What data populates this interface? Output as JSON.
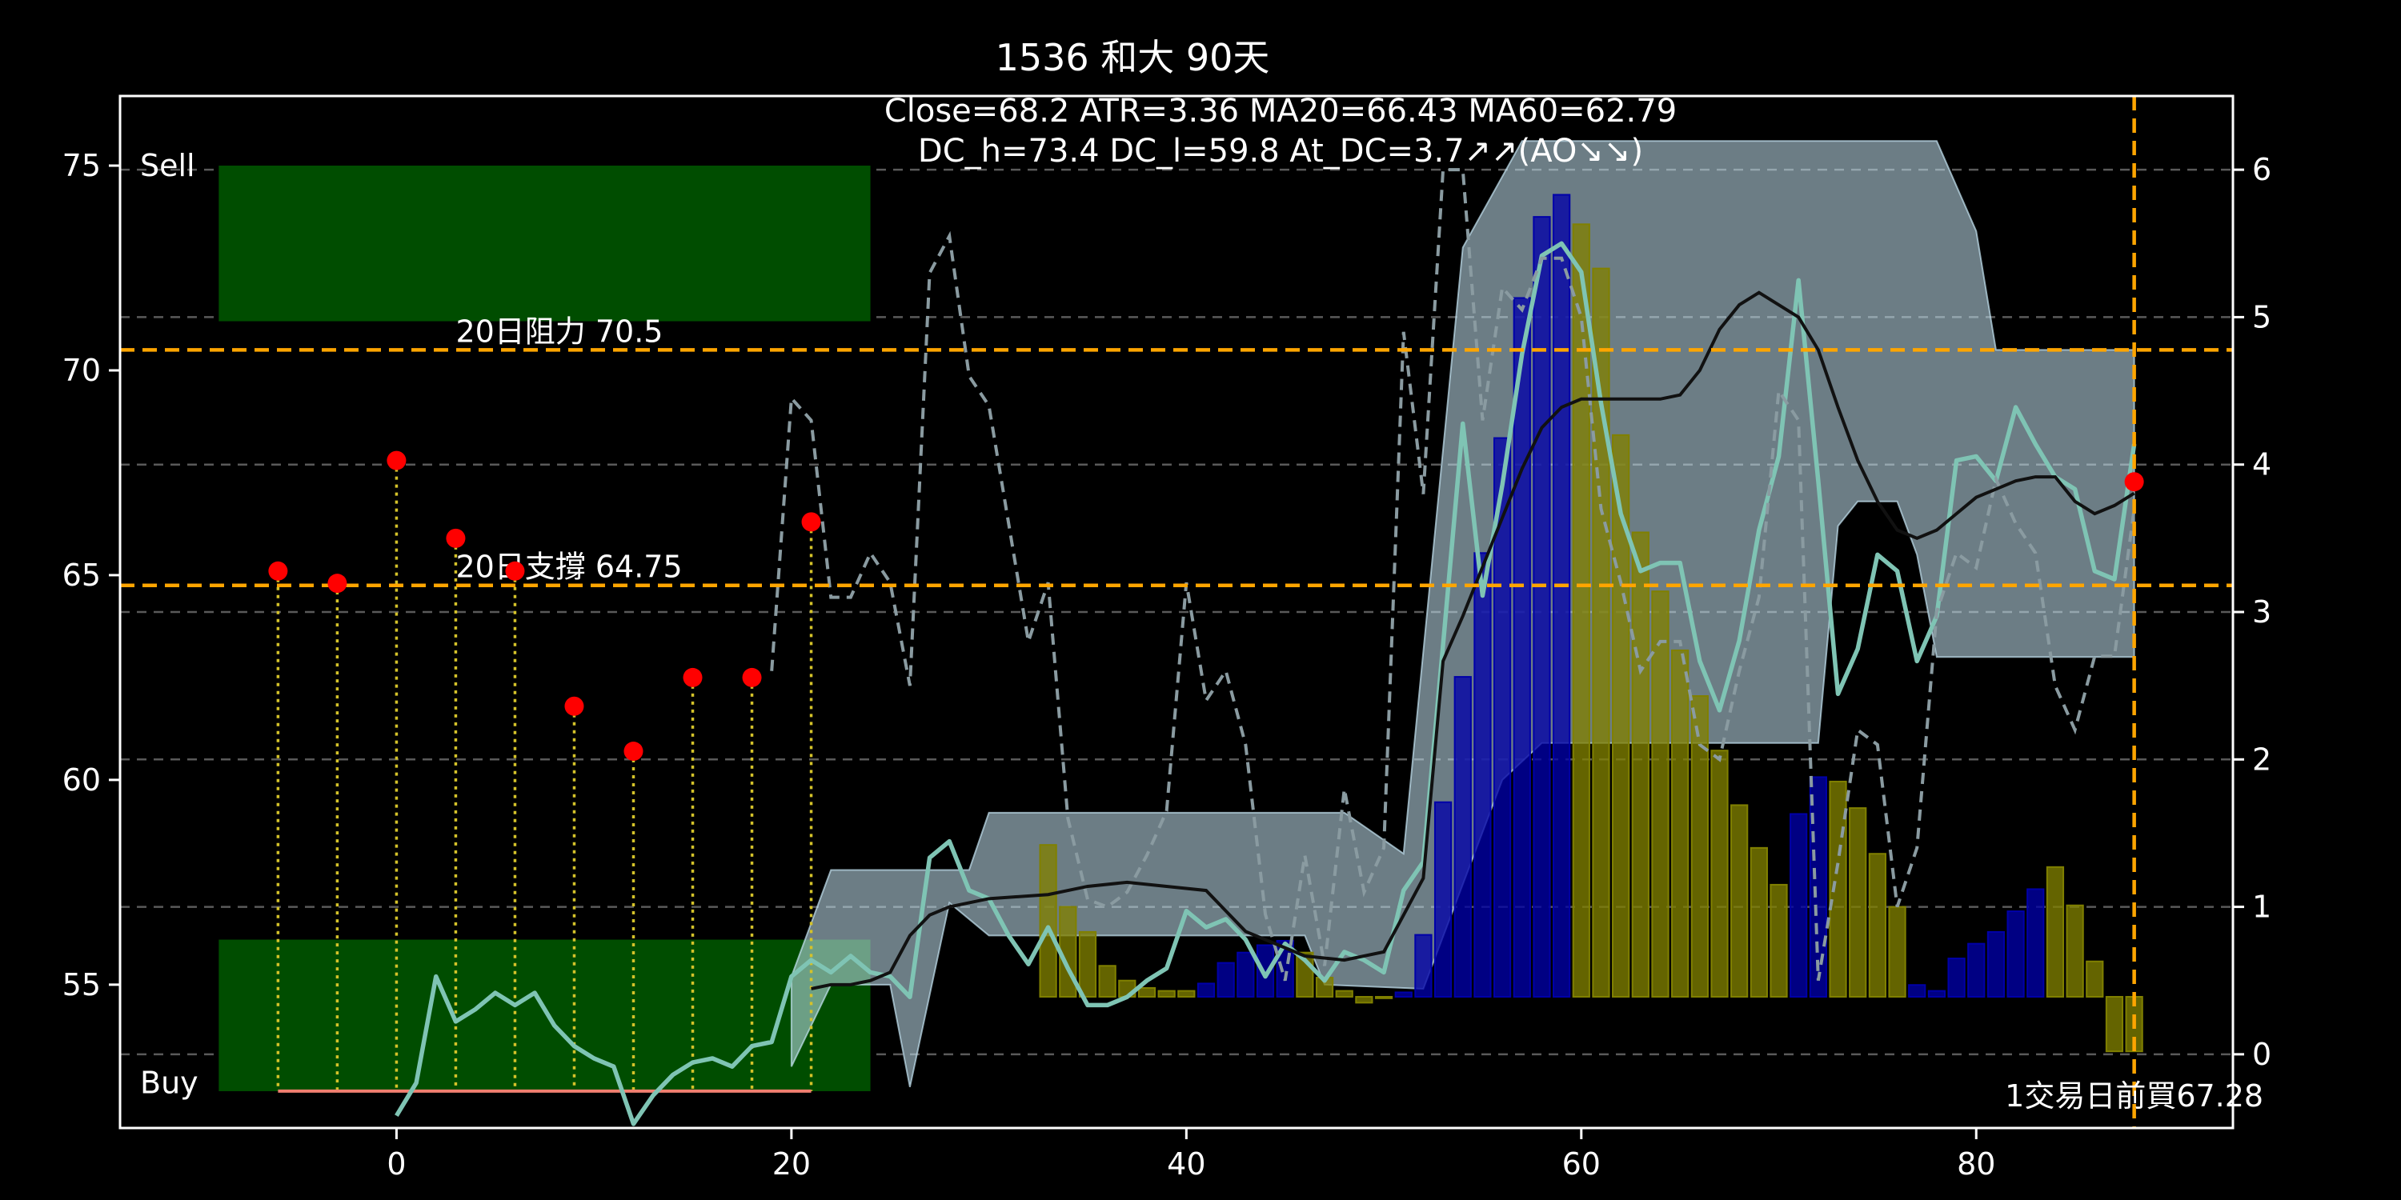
{
  "chart_data": {
    "type": "line",
    "title": "1536 和大 90天",
    "subtitle_line1": "Close=68.2 ATR=3.36 MA20=66.43 MA60=62.79",
    "subtitle_line2": "DC_h=73.4 DC_l=59.8 At_DC=3.7↗↗(AO↘↘)",
    "xlim": [
      -14,
      93
    ],
    "ylim_left": [
      51.5,
      76.7
    ],
    "ylim_right": [
      -0.5,
      6.5
    ],
    "x_ticks": [
      0,
      20,
      40,
      60,
      80
    ],
    "y_left_ticks": [
      55,
      60,
      65,
      70,
      75
    ],
    "y_right_ticks": [
      0,
      1,
      2,
      3,
      4,
      5,
      6
    ],
    "grid": "horizontal dashed",
    "colors": {
      "background": "#000000",
      "frame": "#ffffff",
      "orange": "#ffa500",
      "zone_green": "#004d00",
      "teal": "#7fc4b4",
      "band": "#c4e4f2",
      "dashed_line": "#8a9ba1",
      "ma_line": "#111111",
      "hist_blue": "#0000a8",
      "hist_yellow": "#808000",
      "dots": "#ff0000",
      "stems": "#d4c22a",
      "baseline": "#f07f6f"
    },
    "zones": {
      "sell": {
        "label": "Sell",
        "x": [
          -9,
          24
        ],
        "y": [
          71.2,
          75
        ]
      },
      "buy": {
        "label": "Buy",
        "x": [
          -9,
          24
        ],
        "y": [
          52.4,
          56.1
        ]
      }
    },
    "hlines": [
      {
        "y": 70.5,
        "label": "20日阻力 70.5",
        "label_x": 3
      },
      {
        "y": 64.75,
        "label": "20日支撐 64.75",
        "label_x": 3
      }
    ],
    "vline_x": 88,
    "buy_note": "1交易日前買67.28",
    "buy_note_pos": [
      88,
      52.3
    ],
    "right_point": {
      "x": 88,
      "y": 67.28
    },
    "signal_points": [
      {
        "x": -6,
        "y": 65.1
      },
      {
        "x": -3,
        "y": 64.8
      },
      {
        "x": 0,
        "y": 67.8
      },
      {
        "x": 3,
        "y": 65.9
      },
      {
        "x": 6,
        "y": 65.1
      },
      {
        "x": 9,
        "y": 61.8
      },
      {
        "x": 12,
        "y": 60.7
      },
      {
        "x": 15,
        "y": 62.5
      },
      {
        "x": 18,
        "y": 62.5
      },
      {
        "x": 21,
        "y": 66.3
      }
    ],
    "signal_baseline_y": 52.4,
    "histogram": {
      "base": 0.39,
      "bars": [
        [
          33,
          1.42
        ],
        [
          34,
          1.0
        ],
        [
          35,
          0.83
        ],
        [
          36,
          0.6
        ],
        [
          37,
          0.5
        ],
        [
          38,
          0.45
        ],
        [
          39,
          0.43
        ],
        [
          40,
          0.43
        ],
        [
          41,
          0.48
        ],
        [
          42,
          0.62
        ],
        [
          43,
          0.69
        ],
        [
          44,
          0.74
        ],
        [
          45,
          0.77
        ],
        [
          46,
          0.69
        ],
        [
          47,
          0.52
        ],
        [
          48,
          0.43
        ],
        [
          49,
          0.35
        ],
        [
          50,
          0.38
        ],
        [
          51,
          0.42
        ],
        [
          52,
          0.81
        ],
        [
          53,
          1.71
        ],
        [
          54,
          2.56
        ],
        [
          55,
          3.4
        ],
        [
          56,
          4.18
        ],
        [
          57,
          5.13
        ],
        [
          58,
          5.68
        ],
        [
          59,
          5.83
        ],
        [
          60,
          5.63
        ],
        [
          61,
          5.33
        ],
        [
          62,
          4.2
        ],
        [
          63,
          3.54
        ],
        [
          64,
          3.14
        ],
        [
          65,
          2.74
        ],
        [
          66,
          2.43
        ],
        [
          67,
          2.06
        ],
        [
          68,
          1.69
        ],
        [
          69,
          1.4
        ],
        [
          70,
          1.15
        ],
        [
          71,
          1.63
        ],
        [
          72,
          1.88
        ],
        [
          73,
          1.85
        ],
        [
          74,
          1.67
        ],
        [
          75,
          1.36
        ],
        [
          76,
          1.0
        ],
        [
          77,
          0.47
        ],
        [
          78,
          0.43
        ],
        [
          79,
          0.65
        ],
        [
          80,
          0.75
        ],
        [
          81,
          0.83
        ],
        [
          82,
          0.97
        ],
        [
          83,
          1.12
        ],
        [
          84,
          1.27
        ],
        [
          85,
          1.01
        ],
        [
          86,
          0.63
        ],
        [
          87,
          0.02
        ],
        [
          88,
          0.02
        ]
      ]
    },
    "band_upper": [
      [
        20,
        55.2
      ],
      [
        22,
        57.8
      ],
      [
        29,
        57.8
      ],
      [
        30,
        59.2
      ],
      [
        48,
        59.2
      ],
      [
        51,
        58.2
      ],
      [
        54,
        73
      ],
      [
        57,
        75.6
      ],
      [
        78,
        75.6
      ],
      [
        80,
        73.4
      ],
      [
        81,
        70.5
      ],
      [
        88,
        70.5
      ]
    ],
    "band_lower": [
      [
        20,
        53
      ],
      [
        22,
        55
      ],
      [
        25,
        55
      ],
      [
        26,
        52.5
      ],
      [
        28,
        57
      ],
      [
        30,
        56.2
      ],
      [
        46,
        56.2
      ],
      [
        47,
        55
      ],
      [
        52,
        54.9
      ],
      [
        56,
        60
      ],
      [
        58,
        60.9
      ],
      [
        72,
        60.9
      ],
      [
        73,
        66.2
      ],
      [
        74,
        66.8
      ],
      [
        76,
        66.8
      ],
      [
        77,
        65.5
      ],
      [
        78,
        63
      ],
      [
        88,
        63
      ]
    ],
    "series": [
      {
        "role": "teal_line",
        "axis": "left",
        "points": [
          [
            0,
            51.8
          ],
          [
            1,
            52.6
          ],
          [
            2,
            55.2
          ],
          [
            3,
            54.1
          ],
          [
            4,
            54.4
          ],
          [
            5,
            54.8
          ],
          [
            6,
            54.5
          ],
          [
            7,
            54.8
          ],
          [
            8,
            54
          ],
          [
            9,
            53.5
          ],
          [
            10,
            53.2
          ],
          [
            11,
            53
          ],
          [
            12,
            51.6
          ],
          [
            13,
            52.3
          ],
          [
            14,
            52.8
          ],
          [
            15,
            53.1
          ],
          [
            16,
            53.2
          ],
          [
            17,
            53
          ],
          [
            18,
            53.5
          ],
          [
            19,
            53.6
          ],
          [
            20,
            55.2
          ],
          [
            21,
            55.6
          ],
          [
            22,
            55.3
          ],
          [
            23,
            55.7
          ],
          [
            24,
            55.3
          ],
          [
            25,
            55.2
          ],
          [
            26,
            54.7
          ],
          [
            27,
            58.1
          ],
          [
            28,
            58.5
          ],
          [
            29,
            57.3
          ],
          [
            30,
            57.1
          ],
          [
            31,
            56.2
          ],
          [
            32,
            55.5
          ],
          [
            33,
            56.4
          ],
          [
            34,
            55.4
          ],
          [
            35,
            54.5
          ],
          [
            36,
            54.5
          ],
          [
            37,
            54.7
          ],
          [
            38,
            55.1
          ],
          [
            39,
            55.4
          ],
          [
            40,
            56.8
          ],
          [
            41,
            56.4
          ],
          [
            42,
            56.6
          ],
          [
            43,
            56.1
          ],
          [
            44,
            55.2
          ],
          [
            45,
            56
          ],
          [
            46,
            55.6
          ],
          [
            47,
            55.1
          ],
          [
            48,
            55.8
          ],
          [
            49,
            55.6
          ],
          [
            50,
            55.3
          ],
          [
            51,
            57.3
          ],
          [
            52,
            58
          ],
          [
            53,
            63.3
          ],
          [
            54,
            68.7
          ],
          [
            55,
            64.5
          ],
          [
            56,
            67.2
          ],
          [
            57,
            70.4
          ],
          [
            58,
            72.8
          ],
          [
            59,
            73.1
          ],
          [
            60,
            72.4
          ],
          [
            61,
            69.2
          ],
          [
            62,
            66.5
          ],
          [
            63,
            65.1
          ],
          [
            64,
            65.3
          ],
          [
            65,
            65.3
          ],
          [
            66,
            62.9
          ],
          [
            67,
            61.7
          ],
          [
            68,
            63.4
          ],
          [
            69,
            66.1
          ],
          [
            70,
            67.9
          ],
          [
            71,
            72.2
          ],
          [
            72,
            67.3
          ],
          [
            73,
            62.1
          ],
          [
            74,
            63.2
          ],
          [
            75,
            65.5
          ],
          [
            76,
            65.1
          ],
          [
            77,
            62.9
          ],
          [
            78,
            64
          ],
          [
            79,
            67.8
          ],
          [
            80,
            67.9
          ],
          [
            81,
            67.3
          ],
          [
            82,
            69.1
          ],
          [
            83,
            68.2
          ],
          [
            84,
            67.4
          ],
          [
            85,
            67.1
          ],
          [
            86,
            65.1
          ],
          [
            87,
            64.9
          ],
          [
            88,
            68.2
          ]
        ]
      },
      {
        "role": "dashed_line",
        "axis": "right",
        "points": [
          [
            19,
            2.6
          ],
          [
            20,
            4.45
          ],
          [
            21,
            4.3
          ],
          [
            22,
            3.1
          ],
          [
            23,
            3.1
          ],
          [
            24,
            3.4
          ],
          [
            25,
            3.2
          ],
          [
            26,
            2.5
          ],
          [
            27,
            5.3
          ],
          [
            28,
            5.55
          ],
          [
            29,
            4.6
          ],
          [
            30,
            4.4
          ],
          [
            31,
            3.6
          ],
          [
            32,
            2.8
          ],
          [
            33,
            3.2
          ],
          [
            34,
            1.6
          ],
          [
            35,
            1.05
          ],
          [
            36,
            1.0
          ],
          [
            37,
            1.1
          ],
          [
            38,
            1.35
          ],
          [
            39,
            1.65
          ],
          [
            40,
            3.2
          ],
          [
            41,
            2.4
          ],
          [
            42,
            2.6
          ],
          [
            43,
            2.1
          ],
          [
            44,
            0.95
          ],
          [
            45,
            0.5
          ],
          [
            46,
            1.35
          ],
          [
            47,
            0.6
          ],
          [
            48,
            1.8
          ],
          [
            49,
            1.1
          ],
          [
            50,
            1.4
          ],
          [
            51,
            4.9
          ],
          [
            52,
            3.8
          ],
          [
            53,
            6.0
          ],
          [
            54,
            6.0
          ],
          [
            55,
            4.3
          ],
          [
            56,
            5.2
          ],
          [
            57,
            5.05
          ],
          [
            58,
            5.4
          ],
          [
            59,
            5.4
          ],
          [
            60,
            5.0
          ],
          [
            61,
            3.7
          ],
          [
            62,
            3.2
          ],
          [
            63,
            2.6
          ],
          [
            64,
            2.8
          ],
          [
            65,
            2.8
          ],
          [
            66,
            2.1
          ],
          [
            67,
            2.0
          ],
          [
            68,
            2.6
          ],
          [
            69,
            3.1
          ],
          [
            70,
            4.5
          ],
          [
            71,
            4.3
          ],
          [
            72,
            0.5
          ],
          [
            73,
            1.3
          ],
          [
            74,
            2.2
          ],
          [
            75,
            2.1
          ],
          [
            76,
            1.0
          ],
          [
            77,
            1.4
          ],
          [
            78,
            3.0
          ],
          [
            79,
            3.4
          ],
          [
            80,
            3.3
          ],
          [
            81,
            3.9
          ],
          [
            82,
            3.6
          ],
          [
            83,
            3.4
          ],
          [
            84,
            2.5
          ],
          [
            85,
            2.2
          ],
          [
            86,
            2.7
          ],
          [
            87,
            2.7
          ],
          [
            88,
            3.7
          ]
        ]
      },
      {
        "role": "ma_line",
        "axis": "left",
        "points": [
          [
            21,
            54.9
          ],
          [
            22,
            55
          ],
          [
            23,
            55
          ],
          [
            24,
            55.1
          ],
          [
            25,
            55.3
          ],
          [
            26,
            56.2
          ],
          [
            27,
            56.7
          ],
          [
            28,
            56.9
          ],
          [
            29,
            57
          ],
          [
            30,
            57.1
          ],
          [
            33,
            57.2
          ],
          [
            35,
            57.4
          ],
          [
            37,
            57.5
          ],
          [
            39,
            57.4
          ],
          [
            41,
            57.3
          ],
          [
            43,
            56.3
          ],
          [
            45,
            55.9
          ],
          [
            46,
            55.7
          ],
          [
            48,
            55.6
          ],
          [
            50,
            55.8
          ],
          [
            52,
            57.6
          ],
          [
            53,
            62.9
          ],
          [
            54,
            64
          ],
          [
            55,
            65.2
          ],
          [
            56,
            66.4
          ],
          [
            57,
            67.6
          ],
          [
            58,
            68.6
          ],
          [
            59,
            69.1
          ],
          [
            60,
            69.3
          ],
          [
            61,
            69.3
          ],
          [
            62,
            69.3
          ],
          [
            63,
            69.3
          ],
          [
            64,
            69.3
          ],
          [
            65,
            69.4
          ],
          [
            66,
            70
          ],
          [
            67,
            71
          ],
          [
            68,
            71.6
          ],
          [
            69,
            71.9
          ],
          [
            70,
            71.6
          ],
          [
            71,
            71.3
          ],
          [
            72,
            70.5
          ],
          [
            73,
            69.1
          ],
          [
            74,
            67.8
          ],
          [
            75,
            66.8
          ],
          [
            76,
            66.1
          ],
          [
            77,
            65.9
          ],
          [
            78,
            66.1
          ],
          [
            79,
            66.5
          ],
          [
            80,
            66.9
          ],
          [
            81,
            67.1
          ],
          [
            82,
            67.3
          ],
          [
            83,
            67.4
          ],
          [
            84,
            67.4
          ],
          [
            85,
            66.8
          ],
          [
            86,
            66.5
          ],
          [
            87,
            66.7
          ],
          [
            88,
            67
          ]
        ]
      }
    ]
  }
}
